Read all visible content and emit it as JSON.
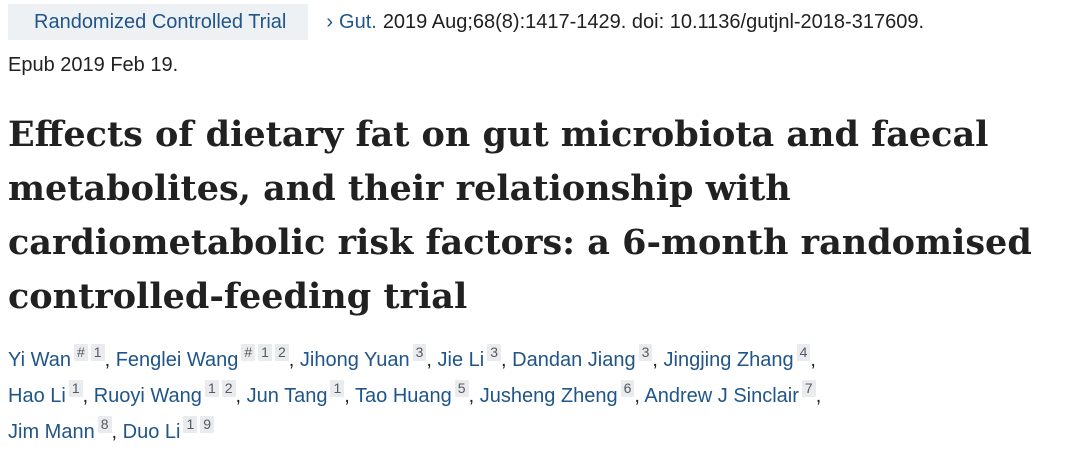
{
  "publication": {
    "type_label": "Randomized Controlled Trial",
    "chevron": "›",
    "journal": "Gut.",
    "citation": "2019 Aug;68(8):1417-1429. doi: 10.1136/gutjnl-2018-317609.",
    "epub": "Epub 2019 Feb 19."
  },
  "article": {
    "title_lines": [
      "Effects of dietary fat on gut microbiota and faecal",
      "metabolites, and their relationship with",
      "cardiometabolic risk factors: a 6-month randomised",
      "controlled-feeding trial"
    ]
  },
  "authors": [
    {
      "name": "Yi Wan",
      "marks": [
        "#",
        "1"
      ]
    },
    {
      "name": "Fenglei Wang",
      "marks": [
        "#",
        "1",
        "2"
      ]
    },
    {
      "name": "Jihong Yuan",
      "marks": [
        "3"
      ]
    },
    {
      "name": "Jie Li",
      "marks": [
        "3"
      ]
    },
    {
      "name": "Dandan Jiang",
      "marks": [
        "3"
      ]
    },
    {
      "name": "Jingjing Zhang",
      "marks": [
        "4"
      ]
    },
    {
      "name": "Hao Li",
      "marks": [
        "1"
      ]
    },
    {
      "name": "Ruoyi Wang",
      "marks": [
        "1",
        "2"
      ]
    },
    {
      "name": "Jun Tang",
      "marks": [
        "1"
      ]
    },
    {
      "name": "Tao Huang",
      "marks": [
        "5"
      ]
    },
    {
      "name": "Jusheng Zheng",
      "marks": [
        "6"
      ]
    },
    {
      "name": "Andrew J Sinclair",
      "marks": [
        "7"
      ]
    },
    {
      "name": "Jim Mann",
      "marks": [
        "8"
      ]
    },
    {
      "name": "Duo Li",
      "marks": [
        "1",
        "9"
      ]
    }
  ],
  "authors_separator": ",",
  "colors": {
    "link": "#20558a",
    "badge_bg": "#eef1f4",
    "sup_bg": "#e9ebee"
  }
}
